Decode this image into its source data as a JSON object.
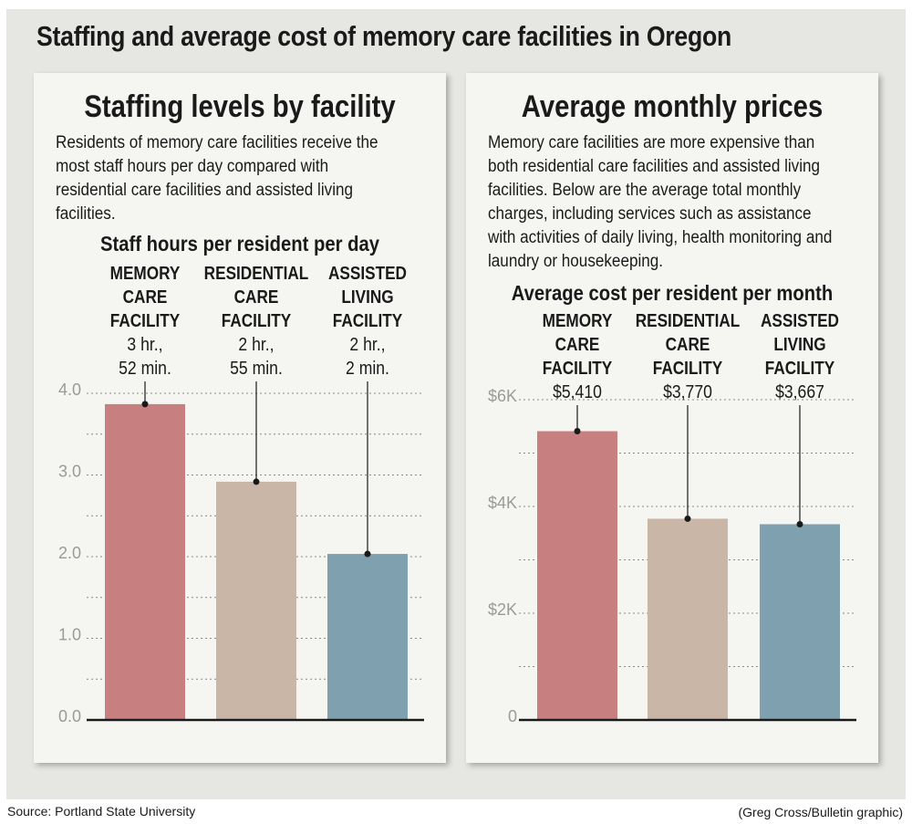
{
  "title": "Staffing and average cost of memory care facilities in Oregon",
  "source": "Source: Portland State University",
  "credit": "(Greg Cross/Bulletin graphic)",
  "colors": {
    "memory": "#c77f80",
    "residential": "#c9b6a6",
    "assisted": "#7fa0ae",
    "background": "#e6e6e2",
    "panel": "#f5f5f2"
  },
  "panels": {
    "staffing": {
      "title": "Staffing levels by facility",
      "description": "Residents of memory care facilities receive the most staff hours per day compared with residential care facilities and assisted living facilities."
    },
    "prices": {
      "title": "Average monthly prices",
      "description": "Memory care facilities are more expensive than both residential care facilities and assisted living facilities. Below are the average total monthly charges, including services such as assistance with activities of daily living, health monitoring and laundry or housekeeping."
    }
  },
  "chart_data": [
    {
      "type": "bar",
      "title": "Staff hours per resident per day",
      "categories": [
        [
          "MEMORY",
          "CARE",
          "FACILITY"
        ],
        [
          "RESIDENTIAL",
          "CARE",
          "FACILITY"
        ],
        [
          "ASSISTED",
          "LIVING",
          "FACILITY"
        ]
      ],
      "value_labels": [
        [
          "3 hr.,",
          "52 min."
        ],
        [
          "2 hr.,",
          "55 min."
        ],
        [
          "2 hr.,",
          "2 min."
        ]
      ],
      "values": [
        3.867,
        2.917,
        2.033
      ],
      "ylim": [
        0,
        4
      ],
      "yticks": [
        0,
        1,
        2,
        3,
        4
      ],
      "ytick_labels": [
        "0.0",
        "1.0",
        "2.0",
        "3.0",
        "4.0"
      ],
      "minor_grid": true,
      "colors": [
        "#c77f80",
        "#c9b6a6",
        "#7fa0ae"
      ]
    },
    {
      "type": "bar",
      "title": "Average cost per resident per month",
      "categories": [
        [
          "MEMORY",
          "CARE",
          "FACILITY"
        ],
        [
          "RESIDENTIAL",
          "CARE",
          "FACILITY"
        ],
        [
          "ASSISTED",
          "LIVING",
          "FACILITY"
        ]
      ],
      "value_labels": [
        [
          "$5,410"
        ],
        [
          "$3,770"
        ],
        [
          "$3,667"
        ]
      ],
      "values": [
        5410,
        3770,
        3667
      ],
      "ylim": [
        0,
        6000
      ],
      "yticks": [
        0,
        2000,
        4000,
        6000
      ],
      "ytick_labels": [
        "0",
        "$2K",
        "$4K",
        "$6K"
      ],
      "minor_grid": true,
      "colors": [
        "#c77f80",
        "#c9b6a6",
        "#7fa0ae"
      ]
    }
  ]
}
